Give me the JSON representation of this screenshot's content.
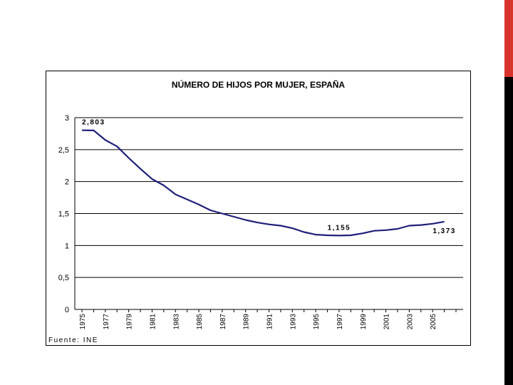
{
  "colors": {
    "accent": "#d9342b",
    "sidebar": "#000000",
    "line": "#1f1f7a",
    "grid": "#000000",
    "text": "#000000"
  },
  "chart_data": {
    "type": "line",
    "title": "NÚMERO DE HIJOS POR MUJER, ESPAÑA",
    "xlabel": "",
    "ylabel": "",
    "ylim": [
      0,
      3
    ],
    "y_ticks": [
      "0",
      "0,5",
      "1",
      "1,5",
      "2",
      "2,5",
      "3"
    ],
    "y_tick_values": [
      0,
      0.5,
      1,
      1.5,
      2,
      2.5,
      3
    ],
    "x_ticks": [
      "1975",
      "1977",
      "1979",
      "1981",
      "1983",
      "1985",
      "1987",
      "1989",
      "1991",
      "1993",
      "1995",
      "1997",
      "1999",
      "2001",
      "2003",
      "2005"
    ],
    "x_range": [
      1975,
      2007
    ],
    "grid": true,
    "series": [
      {
        "x": [
          1975,
          1976,
          1977,
          1978,
          1979,
          1980,
          1981,
          1982,
          1983,
          1984,
          1985,
          1986,
          1987,
          1988,
          1989,
          1990,
          1991,
          1992,
          1993,
          1994,
          1995,
          1996,
          1997,
          1998,
          1999,
          2000,
          2001,
          2002,
          2003,
          2004,
          2005,
          2006
        ],
        "values": [
          2.803,
          2.8,
          2.65,
          2.55,
          2.37,
          2.2,
          2.04,
          1.94,
          1.8,
          1.72,
          1.64,
          1.55,
          1.5,
          1.45,
          1.4,
          1.36,
          1.33,
          1.31,
          1.27,
          1.21,
          1.17,
          1.16,
          1.155,
          1.16,
          1.19,
          1.23,
          1.24,
          1.26,
          1.31,
          1.32,
          1.34,
          1.373
        ]
      }
    ],
    "annotations": [
      {
        "text": "2,803",
        "x": 1975,
        "y": 2.803
      },
      {
        "text": "1,155",
        "x": 1997,
        "y": 1.155
      },
      {
        "text": "1,373",
        "x": 2006,
        "y": 1.373
      }
    ],
    "source": "Fuente: INE"
  }
}
